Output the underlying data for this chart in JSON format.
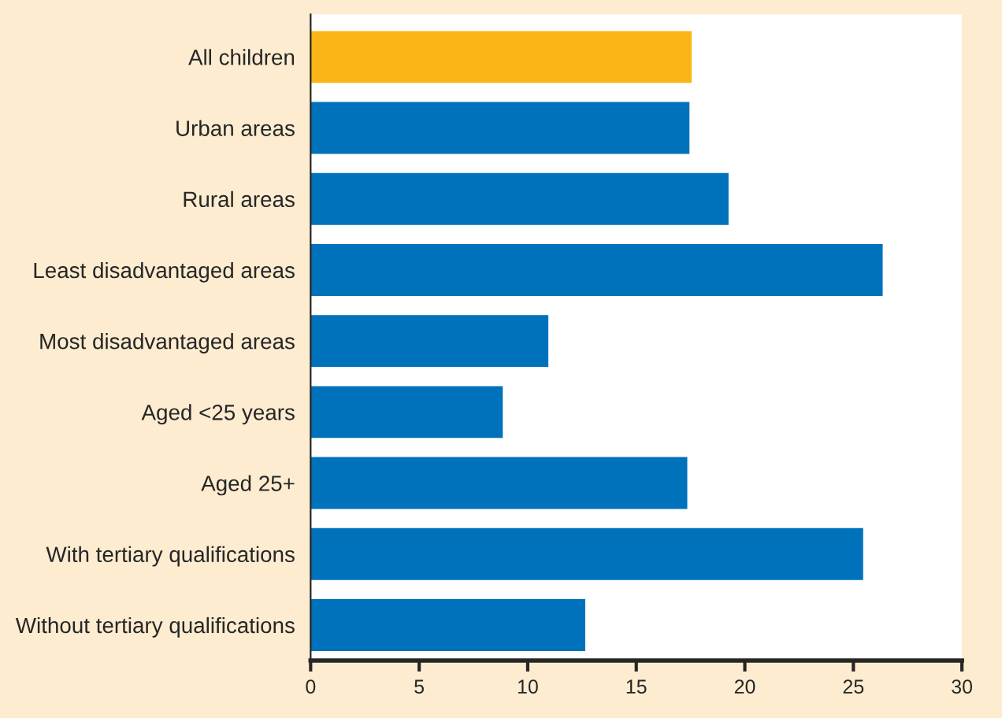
{
  "chart_data": {
    "type": "bar",
    "orientation": "horizontal",
    "categories": [
      "All children",
      "Urban areas",
      "Rural areas",
      "Least disadvantaged areas",
      "Most disadvantaged areas",
      "Aged <25 years",
      "Aged 25+",
      "With tertiary qualifications",
      "Without tertiary qualifications"
    ],
    "values": [
      17.5,
      17.4,
      19.2,
      26.3,
      10.9,
      8.8,
      17.3,
      25.4,
      12.6
    ],
    "colors": [
      "#fbb516",
      "#0072bc",
      "#0072bc",
      "#0072bc",
      "#0072bc",
      "#0072bc",
      "#0072bc",
      "#0072bc",
      "#0072bc"
    ],
    "xlim": [
      0,
      30
    ],
    "xticks": [
      0,
      5,
      10,
      15,
      20,
      25,
      30
    ],
    "grid": false,
    "legend": false
  }
}
